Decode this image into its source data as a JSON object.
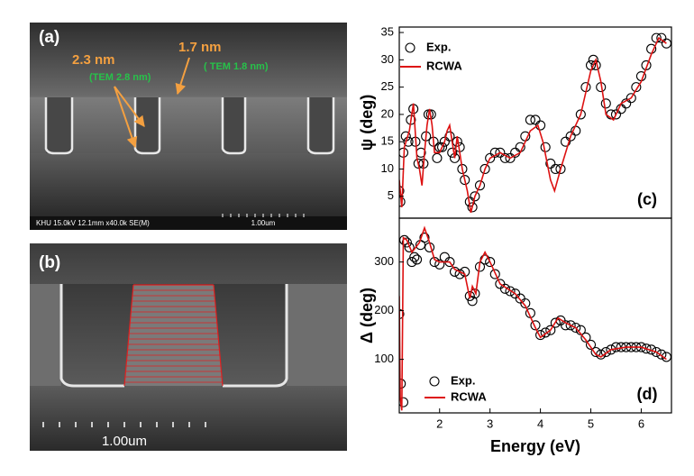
{
  "images": [
    {
      "label": "(a)",
      "annotations": [
        "2.3 nm",
        "1.7 nm",
        "(TEM 2.8 nm)",
        "( TEM 1.8 nm)"
      ],
      "info": "KHU 15.0kV 12.1mm x40.0k SE(M)",
      "scale": "1.00um"
    },
    {
      "label": "(b)",
      "scale": "1.00um"
    }
  ],
  "chart_data": [
    {
      "type": "scatter",
      "panel_label": "(c)",
      "ylabel": "ψ (deg)",
      "legend": "upper left",
      "xlim": [
        1.2,
        6.6
      ],
      "ylim": [
        1,
        36
      ],
      "yticks": [
        5,
        10,
        15,
        20,
        25,
        30,
        35
      ],
      "series": [
        {
          "name": "Exp.",
          "type": "scatter",
          "color": "#000000",
          "x": [
            1.2,
            1.22,
            1.28,
            1.33,
            1.38,
            1.43,
            1.48,
            1.52,
            1.58,
            1.63,
            1.68,
            1.73,
            1.78,
            1.83,
            1.88,
            1.95,
            2.0,
            2.05,
            2.1,
            2.2,
            2.25,
            2.3,
            2.35,
            2.4,
            2.45,
            2.5,
            2.6,
            2.65,
            2.7,
            2.8,
            2.9,
            3.0,
            3.1,
            3.2,
            3.3,
            3.4,
            3.5,
            3.6,
            3.7,
            3.8,
            3.9,
            4.0,
            4.1,
            4.2,
            4.3,
            4.4,
            4.5,
            4.6,
            4.7,
            4.8,
            4.9,
            5.0,
            5.05,
            5.1,
            5.2,
            5.3,
            5.4,
            5.5,
            5.6,
            5.7,
            5.8,
            5.9,
            6.0,
            6.1,
            6.2,
            6.3,
            6.4,
            6.5
          ],
          "values": [
            6,
            4,
            13,
            16,
            15,
            19,
            21,
            15,
            11,
            13,
            11,
            16,
            20,
            20,
            15,
            12,
            14,
            14,
            15,
            16,
            13,
            12,
            15,
            14,
            10,
            8,
            4,
            3,
            5,
            7,
            10,
            12,
            13,
            13,
            12,
            12,
            13,
            14,
            16,
            19,
            19,
            18,
            14,
            11,
            10,
            10,
            15,
            16,
            17,
            20,
            25,
            29,
            30,
            29,
            25,
            22,
            20,
            20,
            21,
            22,
            23,
            25,
            27,
            29,
            32,
            34,
            34,
            33
          ]
        },
        {
          "name": "RCWA",
          "type": "line",
          "color": "#dd1111",
          "x": [
            1.2,
            1.25,
            1.3,
            1.4,
            1.48,
            1.55,
            1.6,
            1.65,
            1.7,
            1.75,
            1.8,
            1.85,
            1.9,
            2.0,
            2.1,
            2.15,
            2.2,
            2.3,
            2.35,
            2.45,
            2.55,
            2.62,
            2.7,
            2.8,
            2.9,
            3.0,
            3.2,
            3.4,
            3.6,
            3.8,
            3.95,
            4.05,
            4.2,
            4.28,
            4.4,
            4.6,
            4.8,
            5.0,
            5.1,
            5.2,
            5.3,
            5.45,
            5.6,
            5.8,
            6.0,
            6.2,
            6.35,
            6.5
          ],
          "values": [
            8,
            3,
            14,
            17,
            22,
            12,
            10,
            7,
            13,
            18,
            21,
            18,
            13,
            13,
            15,
            17,
            18,
            12,
            16,
            10,
            6,
            2,
            5,
            7,
            10,
            12,
            13,
            12,
            13,
            17,
            18,
            15,
            8,
            6,
            10,
            16,
            20,
            28,
            30,
            26,
            20,
            19,
            22,
            23,
            26,
            31,
            34,
            33
          ]
        }
      ]
    },
    {
      "type": "scatter",
      "panel_label": "(d)",
      "ylabel": "Δ (deg)",
      "xlabel": "Energy (eV)",
      "legend": "lower left",
      "xlim": [
        1.2,
        6.6
      ],
      "xticks": [
        2,
        3,
        4,
        5,
        6
      ],
      "ylim": [
        -10,
        390
      ],
      "yticks": [
        100,
        200,
        300
      ],
      "series": [
        {
          "name": "Exp.",
          "type": "scatter",
          "color": "#000000",
          "x": [
            1.2,
            1.23,
            1.28,
            1.3,
            1.35,
            1.4,
            1.45,
            1.5,
            1.55,
            1.62,
            1.7,
            1.8,
            1.9,
            2.0,
            2.1,
            2.2,
            2.3,
            2.4,
            2.5,
            2.6,
            2.65,
            2.7,
            2.8,
            2.9,
            3.0,
            3.1,
            3.2,
            3.3,
            3.4,
            3.5,
            3.6,
            3.7,
            3.8,
            3.9,
            4.0,
            4.1,
            4.2,
            4.3,
            4.4,
            4.5,
            4.6,
            4.7,
            4.8,
            4.9,
            5.0,
            5.1,
            5.2,
            5.3,
            5.4,
            5.5,
            5.6,
            5.7,
            5.8,
            5.9,
            6.0,
            6.1,
            6.2,
            6.3,
            6.4,
            6.5
          ],
          "values": [
            193,
            50,
            12,
            345,
            340,
            330,
            300,
            310,
            305,
            335,
            350,
            330,
            300,
            295,
            310,
            300,
            280,
            275,
            280,
            230,
            220,
            235,
            290,
            305,
            300,
            275,
            255,
            245,
            240,
            235,
            225,
            215,
            195,
            170,
            150,
            155,
            160,
            175,
            180,
            170,
            170,
            165,
            160,
            145,
            130,
            115,
            110,
            115,
            120,
            125,
            125,
            125,
            125,
            125,
            125,
            122,
            120,
            115,
            110,
            105
          ]
        },
        {
          "name": "RCWA",
          "type": "line",
          "color": "#dd1111",
          "x": [
            1.2,
            1.22,
            1.25,
            1.28,
            1.35,
            1.45,
            1.6,
            1.7,
            1.8,
            1.9,
            2.0,
            2.2,
            2.3,
            2.5,
            2.6,
            2.65,
            2.72,
            2.8,
            2.9,
            3.0,
            3.2,
            3.5,
            3.7,
            3.9,
            4.0,
            4.2,
            4.35,
            4.5,
            4.7,
            4.9,
            5.1,
            5.2,
            5.4,
            5.7,
            6.0,
            6.3,
            6.5
          ],
          "values": [
            230,
            20,
            -5,
            350,
            345,
            320,
            340,
            370,
            340,
            305,
            300,
            300,
            285,
            275,
            225,
            250,
            235,
            300,
            320,
            300,
            255,
            235,
            210,
            165,
            145,
            160,
            185,
            175,
            165,
            140,
            110,
            105,
            120,
            125,
            125,
            115,
            100
          ]
        }
      ]
    }
  ]
}
